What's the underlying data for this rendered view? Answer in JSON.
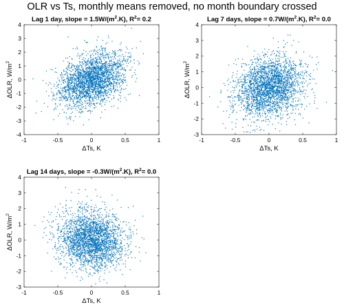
{
  "figure_title": "OLR vs Ts, monthly means removed, no month boundary crossed",
  "chart_data": [
    {
      "type": "scatter",
      "title": {
        "pre": "Lag 1 day, slope = 1.5W/(m",
        "sup": "2",
        "mid": ".K), R",
        "post": "= 0.2"
      },
      "xlabel": "ΔTs, K",
      "ylabel": {
        "base": "ΔOLR, W/m",
        "sup": "2"
      },
      "xlim": [
        -1,
        1
      ],
      "ylim": [
        -4,
        4
      ],
      "xticks": [
        "-1",
        "-0.5",
        "0",
        "0.5",
        "1"
      ],
      "yticks": [
        "-4",
        "-3",
        "-2",
        "-1",
        "0",
        "1",
        "2",
        "3",
        "4"
      ],
      "series": [
        {
          "n_points": 2500,
          "x_sd": 0.25,
          "y_sd": 0.95,
          "slope": 1.5,
          "seed": 11
        }
      ],
      "color": "#0072BD"
    },
    {
      "type": "scatter",
      "title": {
        "pre": "Lag 7 days, slope = 0.7W/(m",
        "sup": "2",
        "mid": ".K), R",
        "post": "= 0.0"
      },
      "xlabel": "ΔTs, K",
      "ylabel": {
        "base": "ΔOLR, W/m",
        "sup": "2"
      },
      "xlim": [
        -1,
        1
      ],
      "ylim": [
        -3,
        4
      ],
      "xticks": [
        "-1",
        "-0.5",
        "0",
        "0.5",
        "1"
      ],
      "yticks": [
        "-3",
        "-2",
        "-1",
        "0",
        "1",
        "2",
        "3",
        "4"
      ],
      "series": [
        {
          "n_points": 2500,
          "x_sd": 0.25,
          "y_sd": 0.95,
          "slope": 0.7,
          "seed": 23
        }
      ],
      "color": "#0072BD"
    },
    {
      "type": "scatter",
      "title": {
        "pre": "Lag 14 days, slope = -0.3W/(m",
        "sup": "2",
        "mid": ".K), R",
        "post": "= 0.0"
      },
      "xlabel": "ΔTs, K",
      "ylabel": {
        "base": "ΔOLR, W/m",
        "sup": "2"
      },
      "xlim": [
        -1,
        1
      ],
      "ylim": [
        -3,
        4
      ],
      "xticks": [
        "-1",
        "-0.5",
        "0",
        "0.5",
        "1"
      ],
      "yticks": [
        "-3",
        "-2",
        "-1",
        "0",
        "1",
        "2",
        "3",
        "4"
      ],
      "series": [
        {
          "n_points": 2500,
          "x_sd": 0.25,
          "y_sd": 0.95,
          "slope": -0.3,
          "seed": 37
        }
      ],
      "color": "#0072BD"
    }
  ]
}
